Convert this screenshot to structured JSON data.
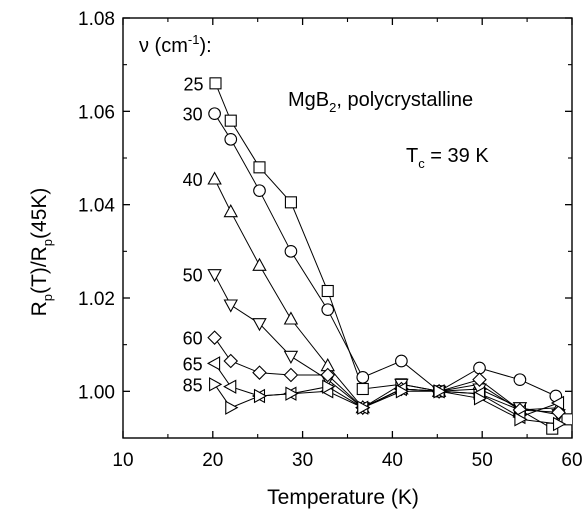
{
  "chart_data": {
    "type": "line",
    "title": "",
    "xlabel": "Temperature (K)",
    "ylabel": {
      "base": "R",
      "sub1": "p",
      "mid": "(T)/R",
      "sub2": "p",
      "tail": "(45K)"
    },
    "xlim": [
      10,
      60
    ],
    "ylim": [
      0.99,
      1.08
    ],
    "xticks": [
      10,
      20,
      30,
      40,
      50,
      60
    ],
    "yticks": [
      1.0,
      1.02,
      1.04,
      1.06,
      1.08
    ],
    "xtick_labels": [
      "10",
      "20",
      "30",
      "40",
      "50",
      "60"
    ],
    "ytick_labels": [
      "1.00",
      "1.02",
      "1.04",
      "1.06",
      "1.08"
    ],
    "grid": false,
    "legend_title": {
      "nu": "ν",
      "open": " (cm",
      "sup": "-1",
      "close": "):"
    },
    "annotations": {
      "material": {
        "base": "MgB",
        "sub": "2",
        "tail": ", polycrystalline"
      },
      "tc": {
        "base": "T",
        "sub": "c",
        "tail": " = 39 K"
      }
    },
    "series": [
      {
        "name": "25",
        "marker": "square",
        "x": [
          20.3,
          22,
          25.2,
          28.7,
          32.8,
          36.7,
          41,
          45.2,
          49.7,
          54.2,
          57.8,
          59.5
        ],
        "y": [
          1.066,
          1.058,
          1.048,
          1.0405,
          1.0215,
          1.0005,
          1.0015,
          1.0,
          0.9995,
          0.996,
          0.992,
          0.994
        ]
      },
      {
        "name": "30",
        "marker": "circle",
        "x": [
          20.2,
          22,
          25.2,
          28.7,
          32.8,
          36.7,
          41,
          45.2,
          49.7,
          54.2,
          58.2
        ],
        "y": [
          1.0595,
          1.054,
          1.043,
          1.03,
          1.0175,
          1.003,
          1.0065,
          1.0,
          1.005,
          1.0025,
          0.999
        ]
      },
      {
        "name": "40",
        "marker": "triangle-up",
        "x": [
          20.2,
          22,
          25.2,
          28.7,
          32.8,
          36.7,
          41,
          45.2,
          49.7,
          54.2,
          58.5
        ],
        "y": [
          1.0455,
          1.0385,
          1.027,
          1.0155,
          1.0055,
          0.9965,
          1.0005,
          1.0,
          1.0015,
          0.996,
          0.9965
        ]
      },
      {
        "name": "50",
        "marker": "triangle-down",
        "x": [
          20.2,
          22,
          25.2,
          28.7,
          32.8,
          36.7,
          41,
          45.2,
          49.7,
          54.2,
          58.5
        ],
        "y": [
          1.025,
          1.0185,
          1.0145,
          1.0075,
          1.0025,
          0.9965,
          1.0015,
          1.0,
          1.0005,
          0.9965,
          0.995
        ]
      },
      {
        "name": "60",
        "marker": "diamond",
        "x": [
          20.2,
          22,
          25.2,
          28.7,
          32.8,
          36.7,
          41,
          45.2,
          49.7,
          54.2,
          58.5
        ],
        "y": [
          1.0115,
          1.0065,
          1.004,
          1.0035,
          1.0035,
          0.9965,
          1.0005,
          1.0,
          1.0025,
          0.996,
          0.9955
        ]
      },
      {
        "name": "65",
        "marker": "triangle-left",
        "x": [
          20.2,
          22,
          25.2,
          28.7,
          32.8,
          36.7,
          41,
          45.2,
          49.7,
          54.2,
          58.5
        ],
        "y": [
          1.006,
          1.001,
          0.999,
          0.9995,
          1.0,
          0.9965,
          1.0005,
          1.0,
          0.9995,
          0.9945,
          0.9975
        ]
      },
      {
        "name": "85",
        "marker": "triangle-right",
        "x": [
          20.2,
          22,
          25.2,
          28.7,
          32.8,
          36.7,
          41,
          45.2,
          49.7,
          54.2,
          58.5
        ],
        "y": [
          1.0015,
          0.9965,
          0.999,
          0.9995,
          1.001,
          0.9965,
          1.0,
          1.0,
          0.9985,
          0.994,
          0.993
        ]
      }
    ]
  }
}
